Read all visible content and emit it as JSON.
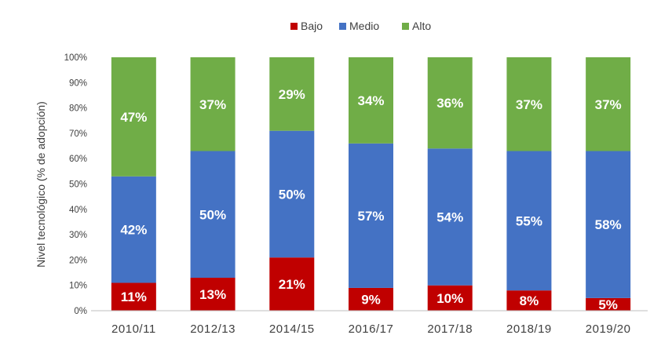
{
  "chart_data": {
    "type": "bar",
    "stacked": true,
    "categories": [
      "2010/11",
      "2012/13",
      "2014/15",
      "2016/17",
      "2017/18",
      "2018/19",
      "2019/20"
    ],
    "series": [
      {
        "name": "Bajo",
        "color": "#c00000",
        "values": [
          11,
          13,
          21,
          9,
          10,
          8,
          5
        ],
        "labels": [
          "11%",
          "13%",
          "21%",
          "9%",
          "10%",
          "8%",
          "5%"
        ]
      },
      {
        "name": "Medio",
        "color": "#4472c4",
        "values": [
          42,
          50,
          50,
          57,
          54,
          55,
          58
        ],
        "labels": [
          "42%",
          "50%",
          "50%",
          "57%",
          "54%",
          "55%",
          "58%"
        ]
      },
      {
        "name": "Alto",
        "color": "#70ad47",
        "values": [
          47,
          37,
          29,
          34,
          36,
          37,
          37
        ],
        "labels": [
          "47%",
          "37%",
          "29%",
          "34%",
          "36%",
          "37%",
          "37%"
        ]
      }
    ],
    "title": "",
    "xlabel": "",
    "ylabel": "Nivel tecnológico (% de adopción)",
    "ylim": [
      0,
      100
    ],
    "yticks": [
      "0%",
      "10%",
      "20%",
      "30%",
      "40%",
      "50%",
      "60%",
      "70%",
      "80%",
      "90%",
      "100%"
    ],
    "grid": false,
    "legend": "top"
  }
}
